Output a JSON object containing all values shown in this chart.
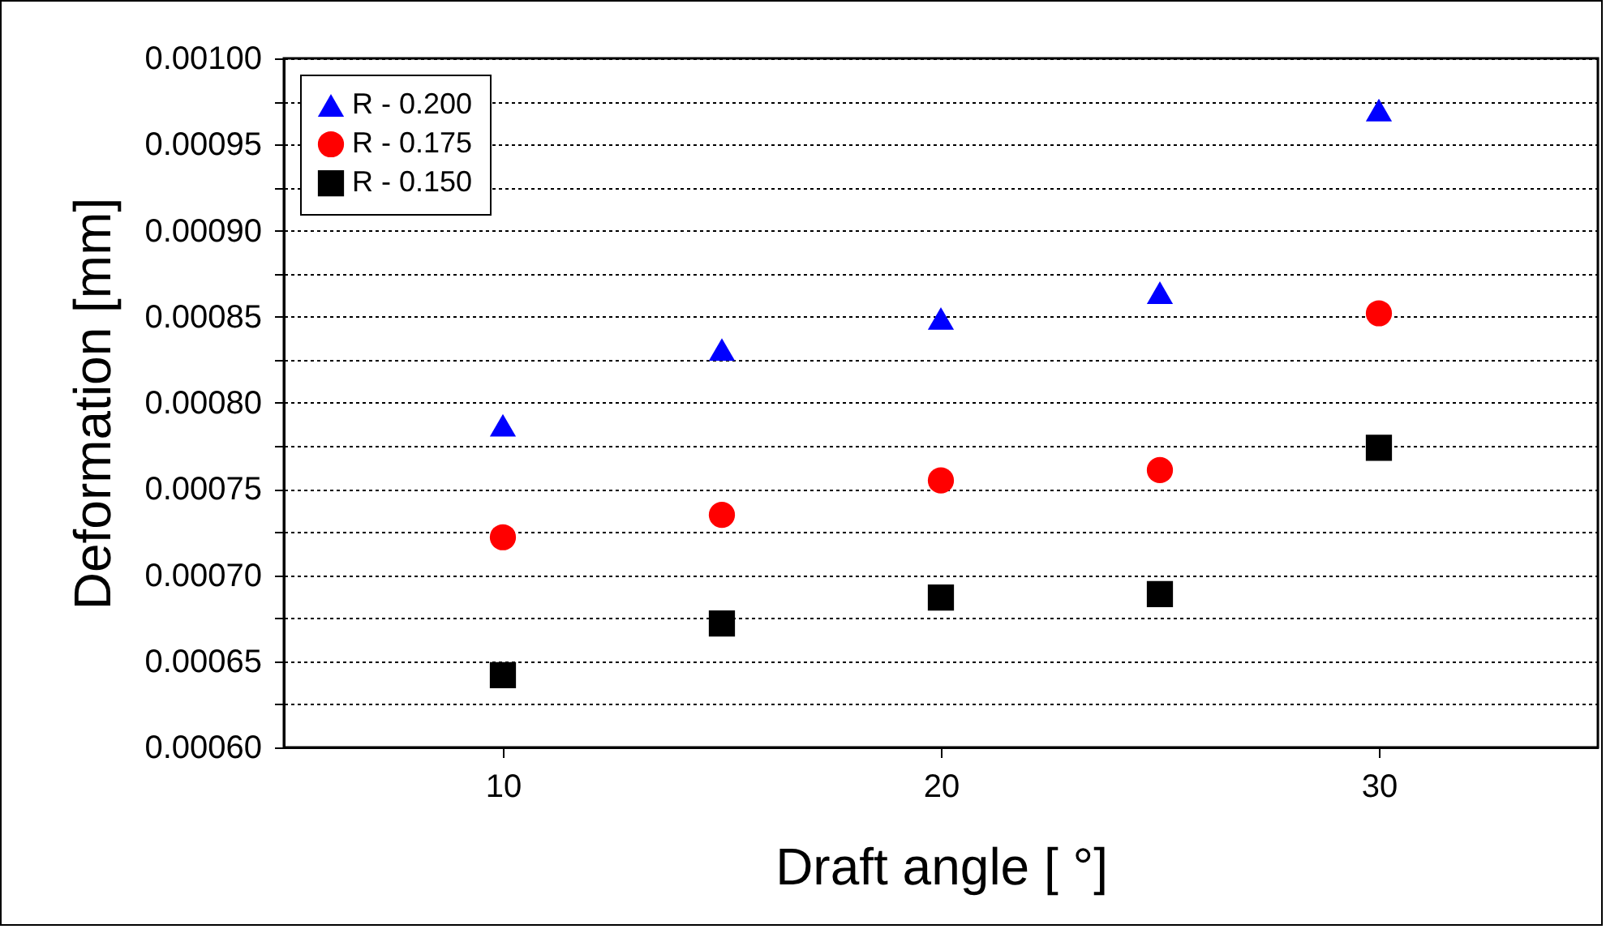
{
  "chart_data": {
    "type": "scatter",
    "xlabel": "Draft angle [ °]",
    "ylabel": "Deformation [mm]",
    "x": [
      10,
      15,
      20,
      25,
      30
    ],
    "series": [
      {
        "name": "R - 0.200",
        "color": "#0000ff",
        "marker": "triangle",
        "values": [
          0.000787,
          0.000831,
          0.000849,
          0.000864,
          0.00097
        ]
      },
      {
        "name": "R - 0.175",
        "color": "#ff0000",
        "marker": "circle",
        "values": [
          0.000722,
          0.000735,
          0.000755,
          0.000761,
          0.000852
        ]
      },
      {
        "name": "R - 0.150",
        "color": "#000000",
        "marker": "square",
        "values": [
          0.000642,
          0.000672,
          0.000687,
          0.000689,
          0.000774
        ]
      }
    ],
    "xlim": [
      5,
      35
    ],
    "xticks": [
      10,
      20,
      30
    ],
    "ylim": [
      0.0006,
      0.001
    ],
    "yticks": [
      {
        "value": 0.0006,
        "label": "0.00060"
      },
      {
        "value": 0.000625,
        "label": null
      },
      {
        "value": 0.00065,
        "label": "0.00065"
      },
      {
        "value": 0.000675,
        "label": null
      },
      {
        "value": 0.0007,
        "label": "0.00070"
      },
      {
        "value": 0.000725,
        "label": null
      },
      {
        "value": 0.00075,
        "label": "0.00075"
      },
      {
        "value": 0.000775,
        "label": null
      },
      {
        "value": 0.0008,
        "label": "0.00080"
      },
      {
        "value": 0.000825,
        "label": null
      },
      {
        "value": 0.00085,
        "label": "0.00085"
      },
      {
        "value": 0.000875,
        "label": null
      },
      {
        "value": 0.0009,
        "label": "0.00090"
      },
      {
        "value": 0.000925,
        "label": null
      },
      {
        "value": 0.00095,
        "label": "0.00095"
      },
      {
        "value": 0.000975,
        "label": null
      },
      {
        "value": 0.001,
        "label": "0.00100"
      }
    ],
    "grid": "y",
    "legend": "top left"
  }
}
